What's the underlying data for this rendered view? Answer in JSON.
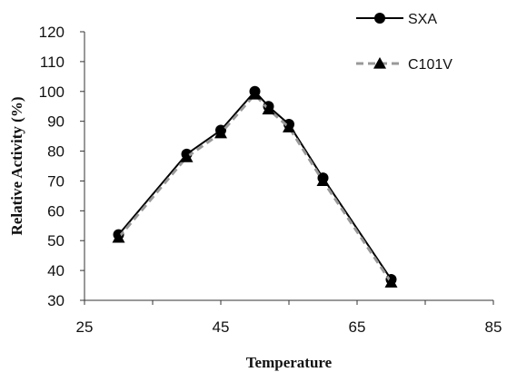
{
  "chart_data": {
    "type": "line",
    "title": "",
    "xlabel": "Temperature",
    "ylabel": "Relative Activity (%)",
    "xlim": [
      25,
      85
    ],
    "ylim": [
      30,
      120
    ],
    "x_ticks": [
      25,
      45,
      65,
      85
    ],
    "y_ticks": [
      30,
      40,
      50,
      60,
      70,
      80,
      90,
      100,
      110,
      120
    ],
    "grid": false,
    "legend_position": "top-right",
    "series": [
      {
        "name": "SXA",
        "color": "#000000",
        "marker": "circle",
        "line_style": "solid",
        "x": [
          30,
          40,
          45,
          50,
          52,
          55,
          60,
          70
        ],
        "y": [
          52,
          79,
          87,
          100,
          95,
          89,
          71,
          37
        ]
      },
      {
        "name": "C101V",
        "color": "#999999",
        "marker": "triangle",
        "line_style": "dashed",
        "x": [
          30,
          40,
          45,
          50,
          52,
          55,
          60,
          70
        ],
        "y": [
          51,
          78,
          86,
          99,
          94,
          88,
          70,
          36
        ]
      }
    ]
  }
}
